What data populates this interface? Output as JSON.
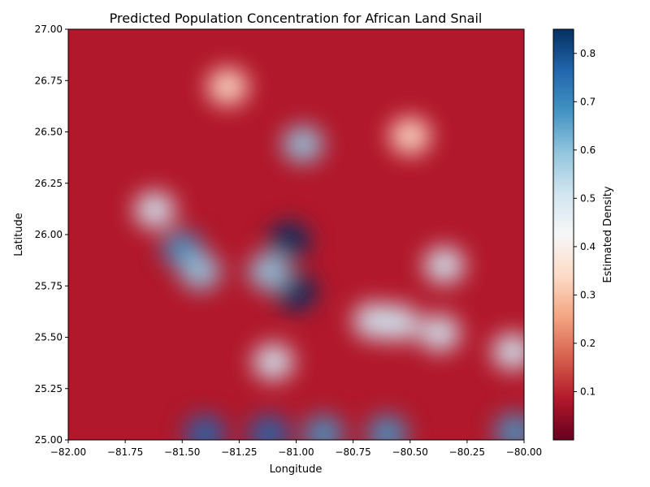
{
  "chart_data": {
    "type": "heatmap",
    "title": "Predicted Population Concentration for African Land Snail",
    "xlabel": "Longitude",
    "ylabel": "Latitude",
    "xlim": [
      -82.0,
      -80.0
    ],
    "ylim": [
      25.0,
      27.0
    ],
    "x_ticks": [
      -82.0,
      -81.75,
      -81.5,
      -81.25,
      -81.0,
      -80.75,
      -80.5,
      -80.25,
      -80.0
    ],
    "x_tick_labels": [
      "−82.00",
      "−81.75",
      "−81.50",
      "−81.25",
      "−81.00",
      "−80.75",
      "−80.50",
      "−80.25",
      "−80.00"
    ],
    "y_ticks": [
      25.0,
      25.25,
      25.5,
      25.75,
      26.0,
      26.25,
      26.5,
      26.75,
      27.0
    ],
    "y_tick_labels": [
      "25.00",
      "25.25",
      "25.50",
      "25.75",
      "26.00",
      "26.25",
      "26.50",
      "26.75",
      "27.00"
    ],
    "colorbar": {
      "label": "Estimated Density",
      "colormap": "RdBu",
      "min": 0.0,
      "max": 0.85,
      "ticks": [
        0.1,
        0.2,
        0.3,
        0.4,
        0.5,
        0.6,
        0.7,
        0.8
      ],
      "tick_labels": [
        "0.1",
        "0.2",
        "0.3",
        "0.4",
        "0.5",
        "0.6",
        "0.7",
        "0.8"
      ],
      "colors": [
        "#67001f",
        "#b2182b",
        "#d6604d",
        "#f4a582",
        "#fddbc7",
        "#f7f7f7",
        "#d1e5f0",
        "#92c5de",
        "#4393c3",
        "#2166ac",
        "#053061"
      ]
    },
    "density_features": [
      {
        "lon": -81.5,
        "lat": 25.93,
        "density": 0.66
      },
      {
        "lon": -81.42,
        "lat": 25.82,
        "density": 0.62
      },
      {
        "lon": -81.62,
        "lat": 26.12,
        "density": 0.5
      },
      {
        "lon": -81.03,
        "lat": 25.97,
        "density": 0.82
      },
      {
        "lon": -81.0,
        "lat": 25.72,
        "density": 0.84
      },
      {
        "lon": -81.12,
        "lat": 25.82,
        "density": 0.6
      },
      {
        "lon": -80.97,
        "lat": 26.44,
        "density": 0.62
      },
      {
        "lon": -80.66,
        "lat": 25.58,
        "density": 0.55
      },
      {
        "lon": -80.55,
        "lat": 25.57,
        "density": 0.55
      },
      {
        "lon": -80.37,
        "lat": 25.52,
        "density": 0.55
      },
      {
        "lon": -80.35,
        "lat": 25.85,
        "density": 0.5
      },
      {
        "lon": -81.1,
        "lat": 25.38,
        "density": 0.52
      },
      {
        "lon": -80.05,
        "lat": 25.43,
        "density": 0.48
      },
      {
        "lon": -81.4,
        "lat": 25.03,
        "density": 0.75
      },
      {
        "lon": -81.12,
        "lat": 25.03,
        "density": 0.78
      },
      {
        "lon": -80.88,
        "lat": 25.03,
        "density": 0.7
      },
      {
        "lon": -80.6,
        "lat": 25.03,
        "density": 0.7
      },
      {
        "lon": -80.04,
        "lat": 25.04,
        "density": 0.65
      },
      {
        "lon": -80.5,
        "lat": 26.48,
        "density": 0.35
      },
      {
        "lon": -81.3,
        "lat": 26.72,
        "density": 0.3
      }
    ]
  }
}
